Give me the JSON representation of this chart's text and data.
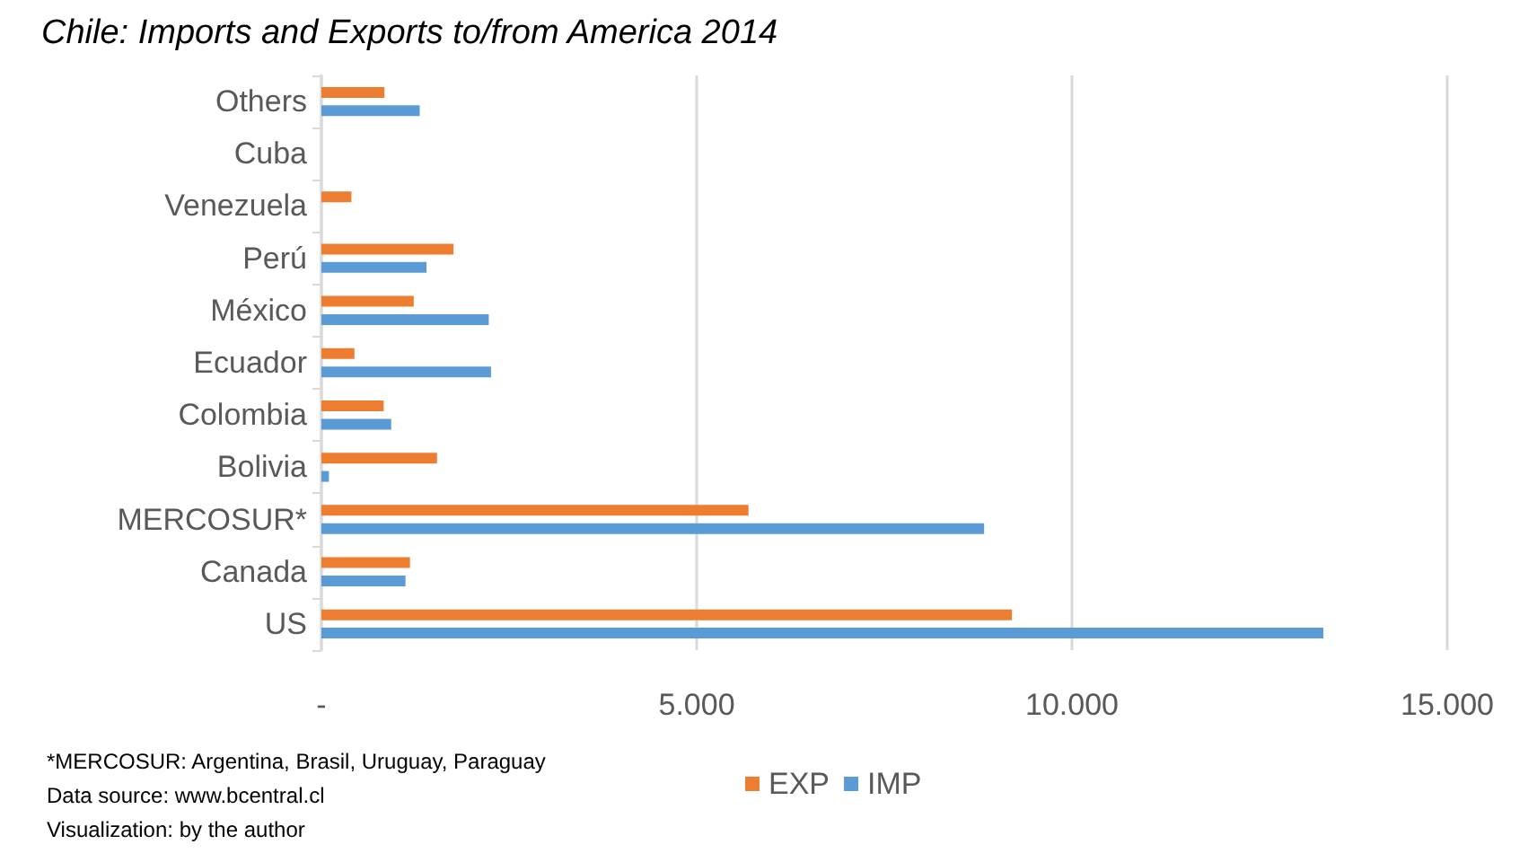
{
  "chart_data": {
    "type": "bar",
    "orientation": "horizontal",
    "title": "Chile: Imports and Exports to/from America 2014",
    "categories": [
      "Others",
      "Cuba",
      "Venezuela",
      "Perú",
      "México",
      "Ecuador",
      "Colombia",
      "Bolivia",
      "MERCOSUR*",
      "Canada",
      "US"
    ],
    "series": [
      {
        "name": "EXP",
        "color": "#ed7d31",
        "values": [
          840,
          0,
          400,
          1760,
          1230,
          440,
          830,
          1540,
          5690,
          1180,
          9200
        ]
      },
      {
        "name": "IMP",
        "color": "#5b9bd5",
        "values": [
          1310,
          0,
          null,
          1400,
          2230,
          2260,
          930,
          100,
          8830,
          1120,
          13350
        ]
      }
    ],
    "xlim": [
      0,
      15000
    ],
    "xticks": [
      {
        "value": 0,
        "label": "-"
      },
      {
        "value": 5000,
        "label": "5.000"
      },
      {
        "value": 10000,
        "label": "10.000"
      },
      {
        "value": 15000,
        "label": "15.000"
      }
    ],
    "grid": "x",
    "legend": "bottom",
    "annotations": [
      "*MERCOSUR: Argentina, Brasil, Uruguay, Paraguay",
      "Data source: www.bcentral.cl",
      "Visualization: by the author"
    ]
  }
}
